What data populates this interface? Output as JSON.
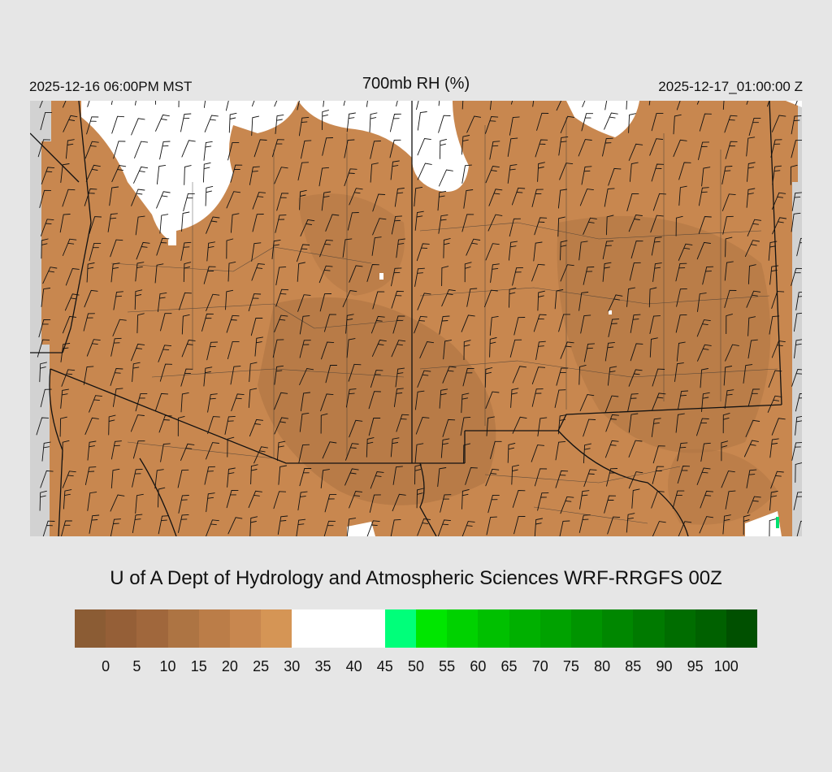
{
  "header": {
    "valid_local": "2025-12-16 06:00PM MST",
    "title": "700mb RH (%)",
    "valid_utc": "2025-12-17_01:00:00 Z"
  },
  "map": {
    "field": "relative humidity at 700 mb",
    "overlay": "wind barbs",
    "colors": {
      "dry_fill": "#c8874f",
      "very_dry_fill": "#a8703f",
      "moist_fill": "#ffffff",
      "no_data": "#d2d2d2",
      "boundaries": "#111111"
    }
  },
  "credit": "U of A Dept of Hydrology and Atmospheric Sciences WRF-RRGFS 00Z",
  "colorbar": {
    "colors": [
      "#8b5c34",
      "#955f37",
      "#a0673c",
      "#ad7443",
      "#bb7d48",
      "#c8874f",
      "#d59555",
      "#ffffff",
      "#ffffff",
      "#ffffff",
      "#00ff7a",
      "#00e600",
      "#00d200",
      "#00c000",
      "#00b000",
      "#00a200",
      "#009400",
      "#008700",
      "#007a00",
      "#006d00",
      "#006100",
      "#005000"
    ],
    "labels": [
      "0",
      "5",
      "10",
      "15",
      "20",
      "25",
      "30",
      "35",
      "40",
      "45",
      "50",
      "55",
      "60",
      "65",
      "70",
      "75",
      "80",
      "85",
      "90",
      "95",
      "100"
    ]
  }
}
